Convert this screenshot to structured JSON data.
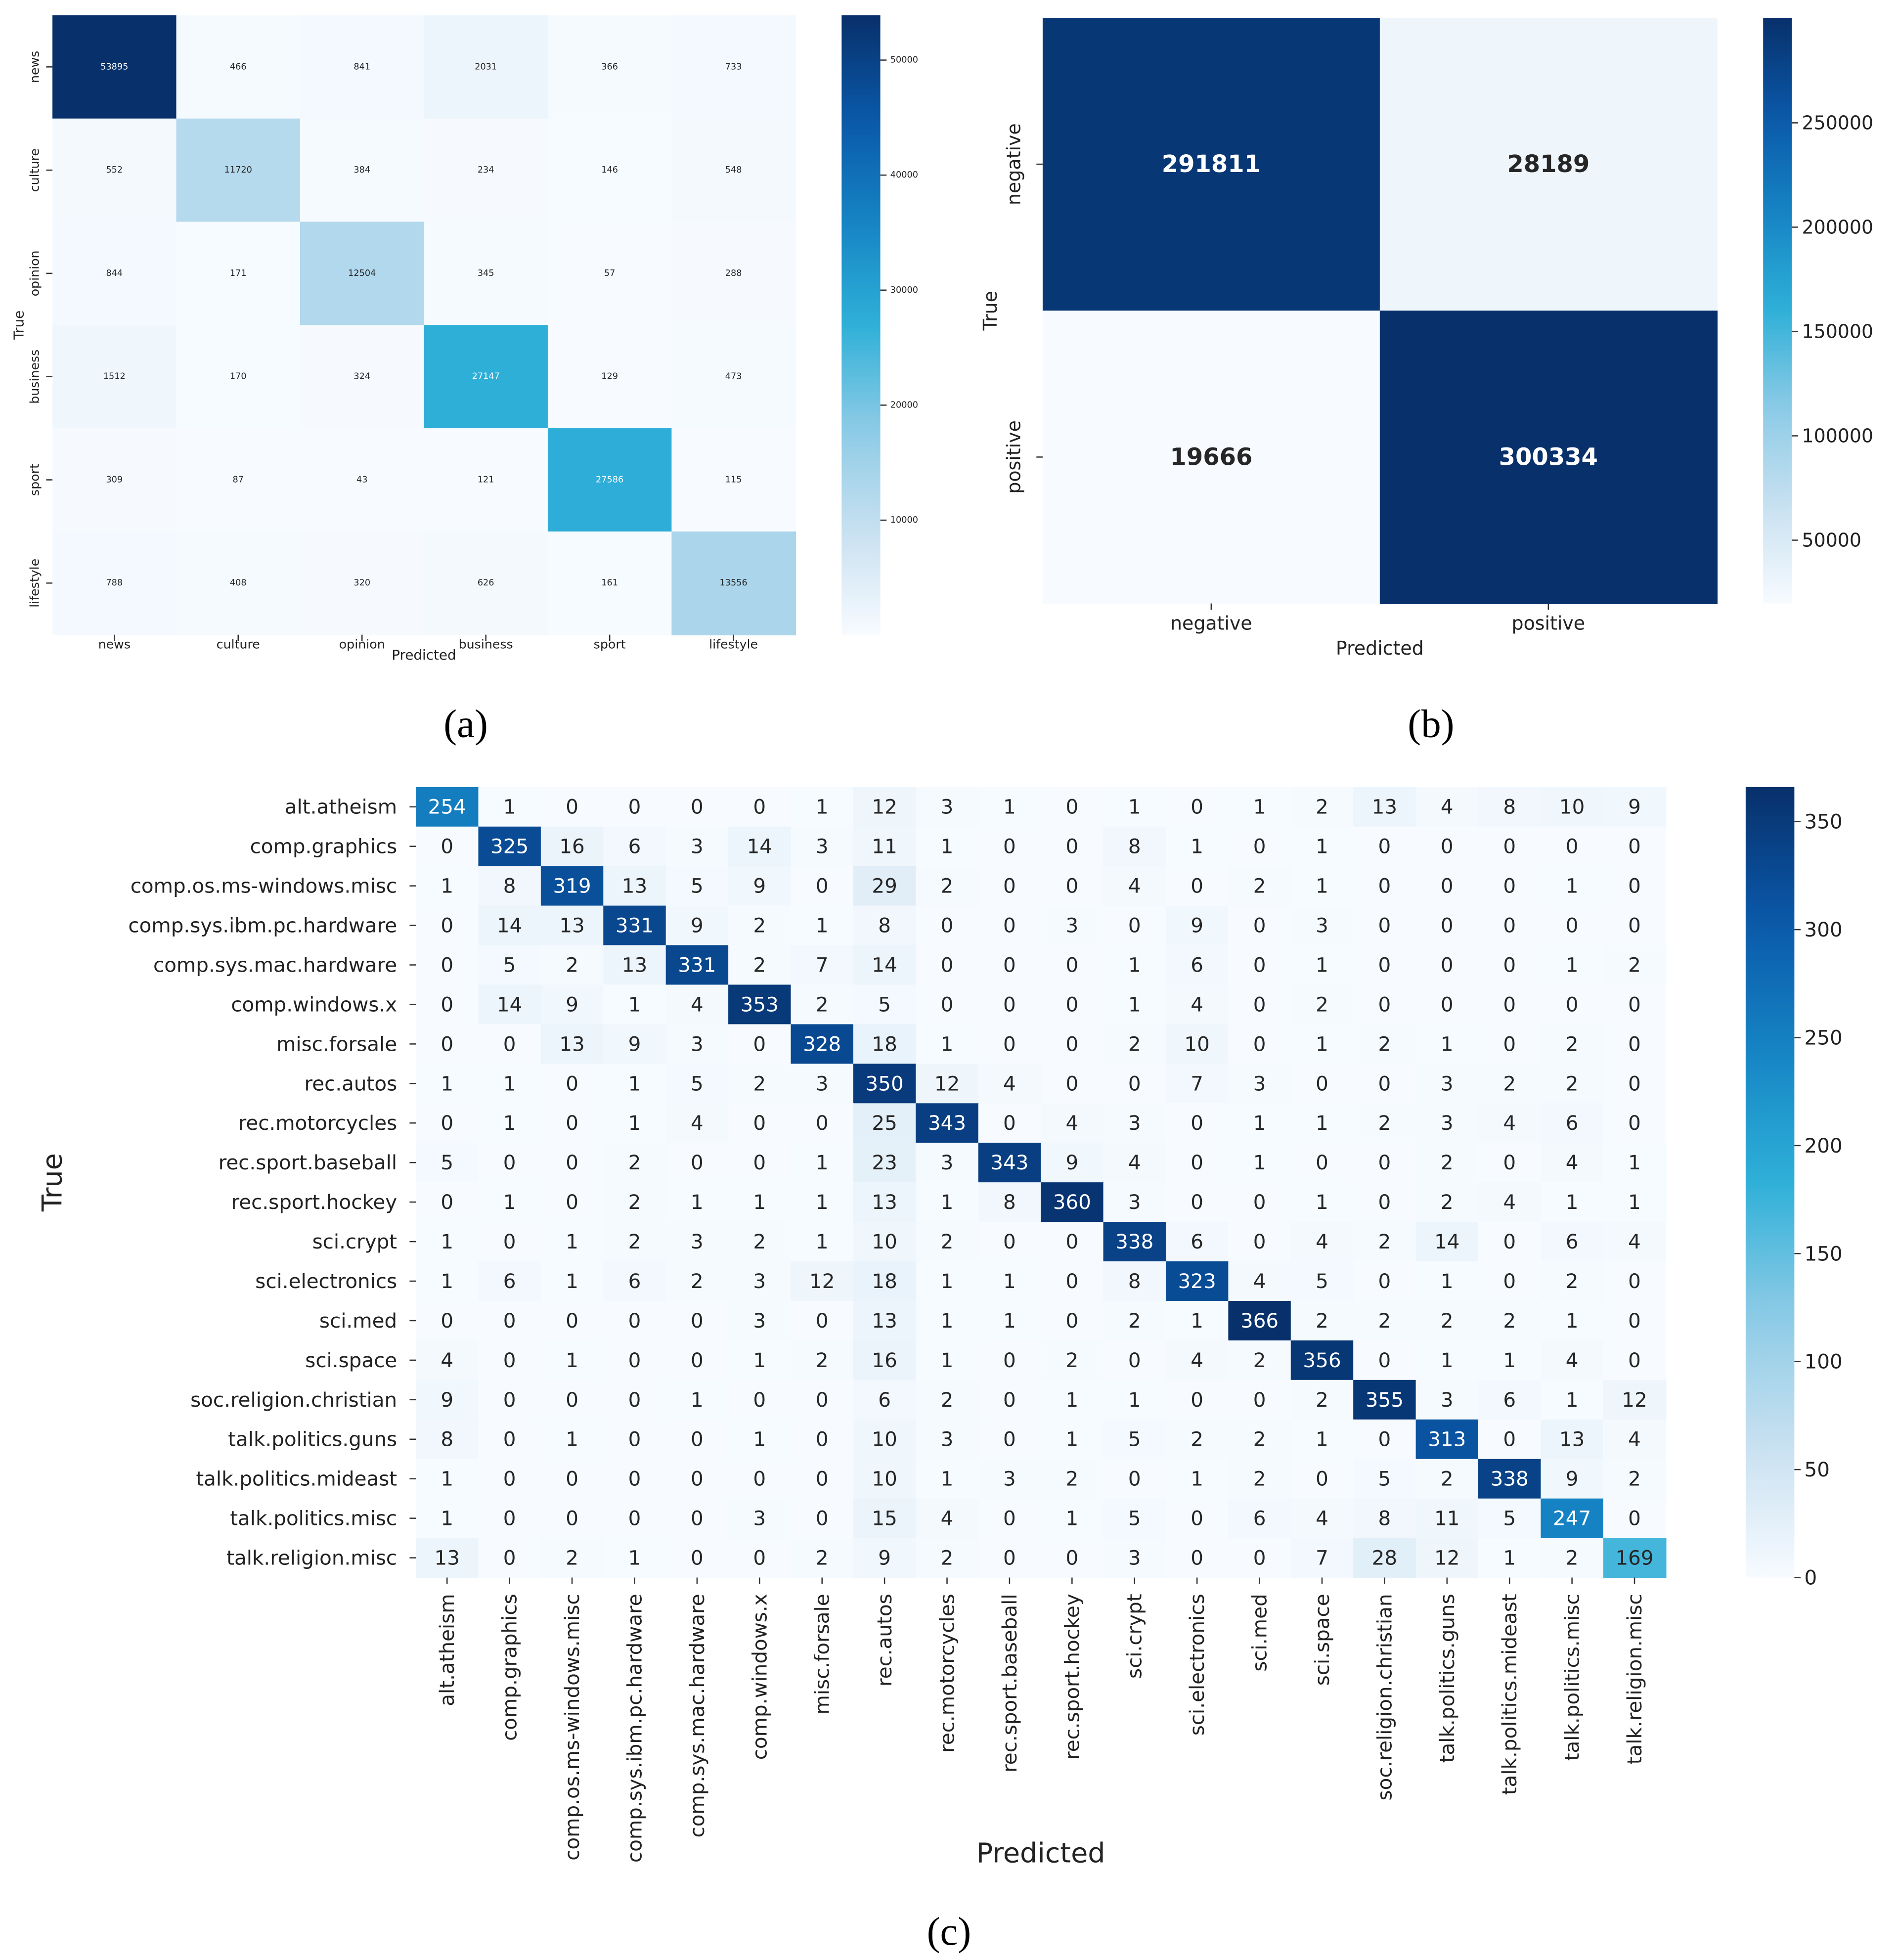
{
  "colors": {
    "scale": [
      "#f7fbff",
      "#c8e0f0",
      "#8ccbe6",
      "#2fb0d8",
      "#1584c4",
      "#0a58a8",
      "#08306b"
    ],
    "text_dark": "#262626",
    "text_light": "#ffffff"
  },
  "chart_data": [
    {
      "type": "heatmap",
      "caption": "(a)",
      "xlabel": "Predicted",
      "ylabel": "True",
      "x_categories": [
        "news",
        "culture",
        "opinion",
        "business",
        "sport",
        "lifestyle"
      ],
      "y_categories": [
        "news",
        "culture",
        "opinion",
        "business",
        "sport",
        "lifestyle"
      ],
      "values": [
        [
          53895,
          466,
          841,
          2031,
          366,
          733
        ],
        [
          552,
          11720,
          384,
          234,
          146,
          548
        ],
        [
          844,
          171,
          12504,
          345,
          57,
          288
        ],
        [
          1512,
          170,
          324,
          27147,
          129,
          473
        ],
        [
          309,
          87,
          43,
          121,
          27586,
          115
        ],
        [
          788,
          408,
          320,
          626,
          161,
          13556
        ]
      ],
      "colorbar": {
        "range": [
          43,
          53895
        ],
        "ticks": [
          10000,
          20000,
          30000,
          40000,
          50000
        ],
        "tick_labels": [
          "10000",
          "20000",
          "30000",
          "40000",
          "50000"
        ]
      }
    },
    {
      "type": "heatmap",
      "caption": "(b)",
      "xlabel": "Predicted",
      "ylabel": "True",
      "x_categories": [
        "negative",
        "positive"
      ],
      "y_categories": [
        "negative",
        "positive"
      ],
      "values": [
        [
          291811,
          28189
        ],
        [
          19666,
          300334
        ]
      ],
      "colorbar": {
        "range": [
          19666,
          300334
        ],
        "ticks": [
          50000,
          100000,
          150000,
          200000,
          250000
        ],
        "tick_labels": [
          "50000",
          "100000",
          "150000",
          "200000",
          "250000"
        ]
      }
    },
    {
      "type": "heatmap",
      "caption": "(c)",
      "xlabel": "Predicted",
      "ylabel": "True",
      "x_categories": [
        "alt.atheism",
        "comp.graphics",
        "comp.os.ms-windows.misc",
        "comp.sys.ibm.pc.hardware",
        "comp.sys.mac.hardware",
        "comp.windows.x",
        "misc.forsale",
        "rec.autos",
        "rec.motorcycles",
        "rec.sport.baseball",
        "rec.sport.hockey",
        "sci.crypt",
        "sci.electronics",
        "sci.med",
        "sci.space",
        "soc.religion.christian",
        "talk.politics.guns",
        "talk.politics.mideast",
        "talk.politics.misc",
        "talk.religion.misc"
      ],
      "y_categories": [
        "alt.atheism",
        "comp.graphics",
        "comp.os.ms-windows.misc",
        "comp.sys.ibm.pc.hardware",
        "comp.sys.mac.hardware",
        "comp.windows.x",
        "misc.forsale",
        "rec.autos",
        "rec.motorcycles",
        "rec.sport.baseball",
        "rec.sport.hockey",
        "sci.crypt",
        "sci.electronics",
        "sci.med",
        "sci.space",
        "soc.religion.christian",
        "talk.politics.guns",
        "talk.politics.mideast",
        "talk.politics.misc",
        "talk.religion.misc"
      ],
      "values": [
        [
          254,
          1,
          0,
          0,
          0,
          0,
          1,
          12,
          3,
          1,
          0,
          1,
          0,
          1,
          2,
          13,
          4,
          8,
          10,
          9
        ],
        [
          0,
          325,
          16,
          6,
          3,
          14,
          3,
          11,
          1,
          0,
          0,
          8,
          1,
          0,
          1,
          0,
          0,
          0,
          0,
          0
        ],
        [
          1,
          8,
          319,
          13,
          5,
          9,
          0,
          29,
          2,
          0,
          0,
          4,
          0,
          2,
          1,
          0,
          0,
          0,
          1,
          0
        ],
        [
          0,
          14,
          13,
          331,
          9,
          2,
          1,
          8,
          0,
          0,
          3,
          0,
          9,
          0,
          3,
          0,
          0,
          0,
          0,
          0
        ],
        [
          0,
          5,
          2,
          13,
          331,
          2,
          7,
          14,
          0,
          0,
          0,
          1,
          6,
          0,
          1,
          0,
          0,
          0,
          1,
          2
        ],
        [
          0,
          14,
          9,
          1,
          4,
          353,
          2,
          5,
          0,
          0,
          0,
          1,
          4,
          0,
          2,
          0,
          0,
          0,
          0,
          0
        ],
        [
          0,
          0,
          13,
          9,
          3,
          0,
          328,
          18,
          1,
          0,
          0,
          2,
          10,
          0,
          1,
          2,
          1,
          0,
          2,
          0
        ],
        [
          1,
          1,
          0,
          1,
          5,
          2,
          3,
          350,
          12,
          4,
          0,
          0,
          7,
          3,
          0,
          0,
          3,
          2,
          2,
          0
        ],
        [
          0,
          1,
          0,
          1,
          4,
          0,
          0,
          25,
          343,
          0,
          4,
          3,
          0,
          1,
          1,
          2,
          3,
          4,
          6,
          0
        ],
        [
          5,
          0,
          0,
          2,
          0,
          0,
          1,
          23,
          3,
          343,
          9,
          4,
          0,
          1,
          0,
          0,
          2,
          0,
          4,
          1
        ],
        [
          0,
          1,
          0,
          2,
          1,
          1,
          1,
          13,
          1,
          8,
          360,
          3,
          0,
          0,
          1,
          0,
          2,
          4,
          1,
          1
        ],
        [
          1,
          0,
          1,
          2,
          3,
          2,
          1,
          10,
          2,
          0,
          0,
          338,
          6,
          0,
          4,
          2,
          14,
          0,
          6,
          4
        ],
        [
          1,
          6,
          1,
          6,
          2,
          3,
          12,
          18,
          1,
          1,
          0,
          8,
          323,
          4,
          5,
          0,
          1,
          0,
          2,
          0
        ],
        [
          0,
          0,
          0,
          0,
          0,
          3,
          0,
          13,
          1,
          1,
          0,
          2,
          1,
          366,
          2,
          2,
          2,
          2,
          1,
          0
        ],
        [
          4,
          0,
          1,
          0,
          0,
          1,
          2,
          16,
          1,
          0,
          2,
          0,
          4,
          2,
          356,
          0,
          1,
          1,
          4,
          0
        ],
        [
          9,
          0,
          0,
          0,
          1,
          0,
          0,
          6,
          2,
          0,
          1,
          1,
          0,
          0,
          2,
          355,
          3,
          6,
          1,
          12
        ],
        [
          8,
          0,
          1,
          0,
          0,
          1,
          0,
          10,
          3,
          0,
          1,
          5,
          2,
          2,
          1,
          0,
          313,
          0,
          13,
          4
        ],
        [
          1,
          0,
          0,
          0,
          0,
          0,
          0,
          10,
          1,
          3,
          2,
          0,
          1,
          2,
          0,
          5,
          2,
          338,
          9,
          2
        ],
        [
          1,
          0,
          0,
          0,
          0,
          3,
          0,
          15,
          4,
          0,
          1,
          5,
          0,
          6,
          4,
          8,
          11,
          5,
          247,
          0
        ],
        [
          13,
          0,
          2,
          1,
          0,
          0,
          2,
          9,
          2,
          0,
          0,
          3,
          0,
          0,
          7,
          28,
          12,
          1,
          2,
          169
        ]
      ],
      "colorbar": {
        "range": [
          0,
          366
        ],
        "ticks": [
          0,
          50,
          100,
          150,
          200,
          250,
          300,
          350
        ],
        "tick_labels": [
          "0",
          "50",
          "100",
          "150",
          "200",
          "250",
          "300",
          "350"
        ]
      }
    }
  ]
}
